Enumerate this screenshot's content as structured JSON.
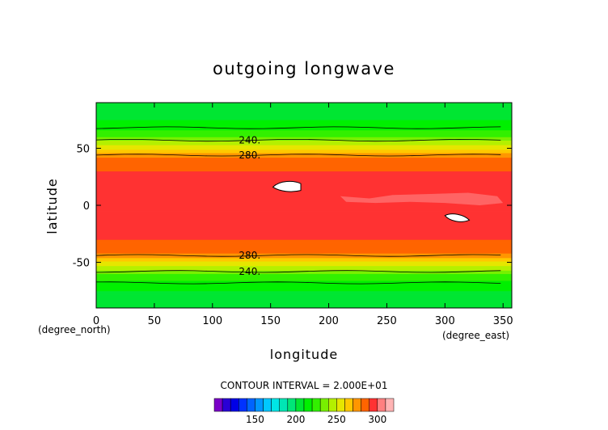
{
  "chart_data": {
    "type": "heatmap",
    "title": "outgoing longwave",
    "xlabel": "longitude",
    "ylabel": "latitude",
    "x_unit": "(degree_east)",
    "y_unit": "(degree_north)",
    "xlim": [
      0,
      357.5
    ],
    "ylim": [
      -90,
      90
    ],
    "x_ticks": [
      0,
      50,
      100,
      150,
      200,
      250,
      300,
      350
    ],
    "y_ticks": [
      -50,
      0,
      50
    ],
    "contour_interval_text": "CONTOUR INTERVAL = 2.000E+01",
    "contour_labels": [
      {
        "text": "240.",
        "lon": 132,
        "lat": 57
      },
      {
        "text": "280.",
        "lon": 132,
        "lat": 44
      },
      {
        "text": "280.",
        "lon": 132,
        "lat": -44
      },
      {
        "text": "240.",
        "lon": 132,
        "lat": -58
      }
    ],
    "zonal_mean_profile": {
      "lat": [
        -90,
        -80,
        -70,
        -62,
        -55,
        -48,
        -43,
        -38,
        -30,
        -20,
        0,
        20,
        30,
        38,
        43,
        48,
        55,
        62,
        70,
        80,
        90
      ],
      "value": [
        200,
        205,
        215,
        225,
        245,
        262,
        278,
        285,
        290,
        295,
        296,
        295,
        290,
        285,
        278,
        262,
        245,
        225,
        215,
        205,
        200
      ]
    },
    "colorbar": {
      "levels": [
        100,
        110,
        120,
        130,
        140,
        150,
        160,
        170,
        180,
        190,
        200,
        210,
        220,
        230,
        240,
        250,
        260,
        270,
        280,
        290,
        300,
        310
      ],
      "colors": [
        "#7a00c8",
        "#2a00d6",
        "#0000e6",
        "#0032ff",
        "#0064ff",
        "#0096ff",
        "#00c8ff",
        "#00e6e6",
        "#00e6b4",
        "#00e678",
        "#00e632",
        "#00f000",
        "#32f000",
        "#78f000",
        "#b4f000",
        "#e6e600",
        "#ffc800",
        "#ff9600",
        "#ff6400",
        "#ff3232",
        "#ff8080",
        "#ffb4b4"
      ],
      "tick_labels": [
        150,
        200,
        250,
        300
      ]
    }
  }
}
